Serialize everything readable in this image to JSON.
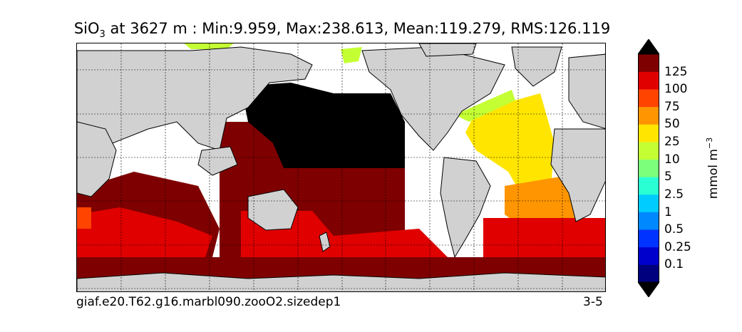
{
  "title": {
    "variable": "SiO",
    "variable_sub": "3",
    "rest": " at 3627 m : Min:9.959, Max:238.613, Mean:119.279, RMS:126.119"
  },
  "footer": {
    "case_name": "giaf.e20.T62.g16.marbl090.zooO2.sizedep1",
    "years": "3-5"
  },
  "colorbar": {
    "units_base": "mmol m",
    "units_exp": "−3",
    "ticks": [
      "0.1",
      "0.25",
      "0.5",
      "1",
      "2.5",
      "5",
      "10",
      "25",
      "50",
      "75",
      "100",
      "125"
    ],
    "colors": [
      "#00007f",
      "#0000cc",
      "#0033ff",
      "#0088ff",
      "#00ccff",
      "#2affd4",
      "#7cff7a",
      "#c4ff33",
      "#ffe500",
      "#ff9500",
      "#ff4400",
      "#e00000",
      "#7f0000"
    ],
    "extend_low_color": "#000000",
    "extend_high_color": "#000000"
  },
  "colors": {
    "land": "#d1d1d1",
    "no_data": "#ffffff",
    "over_max": "#000000"
  }
}
